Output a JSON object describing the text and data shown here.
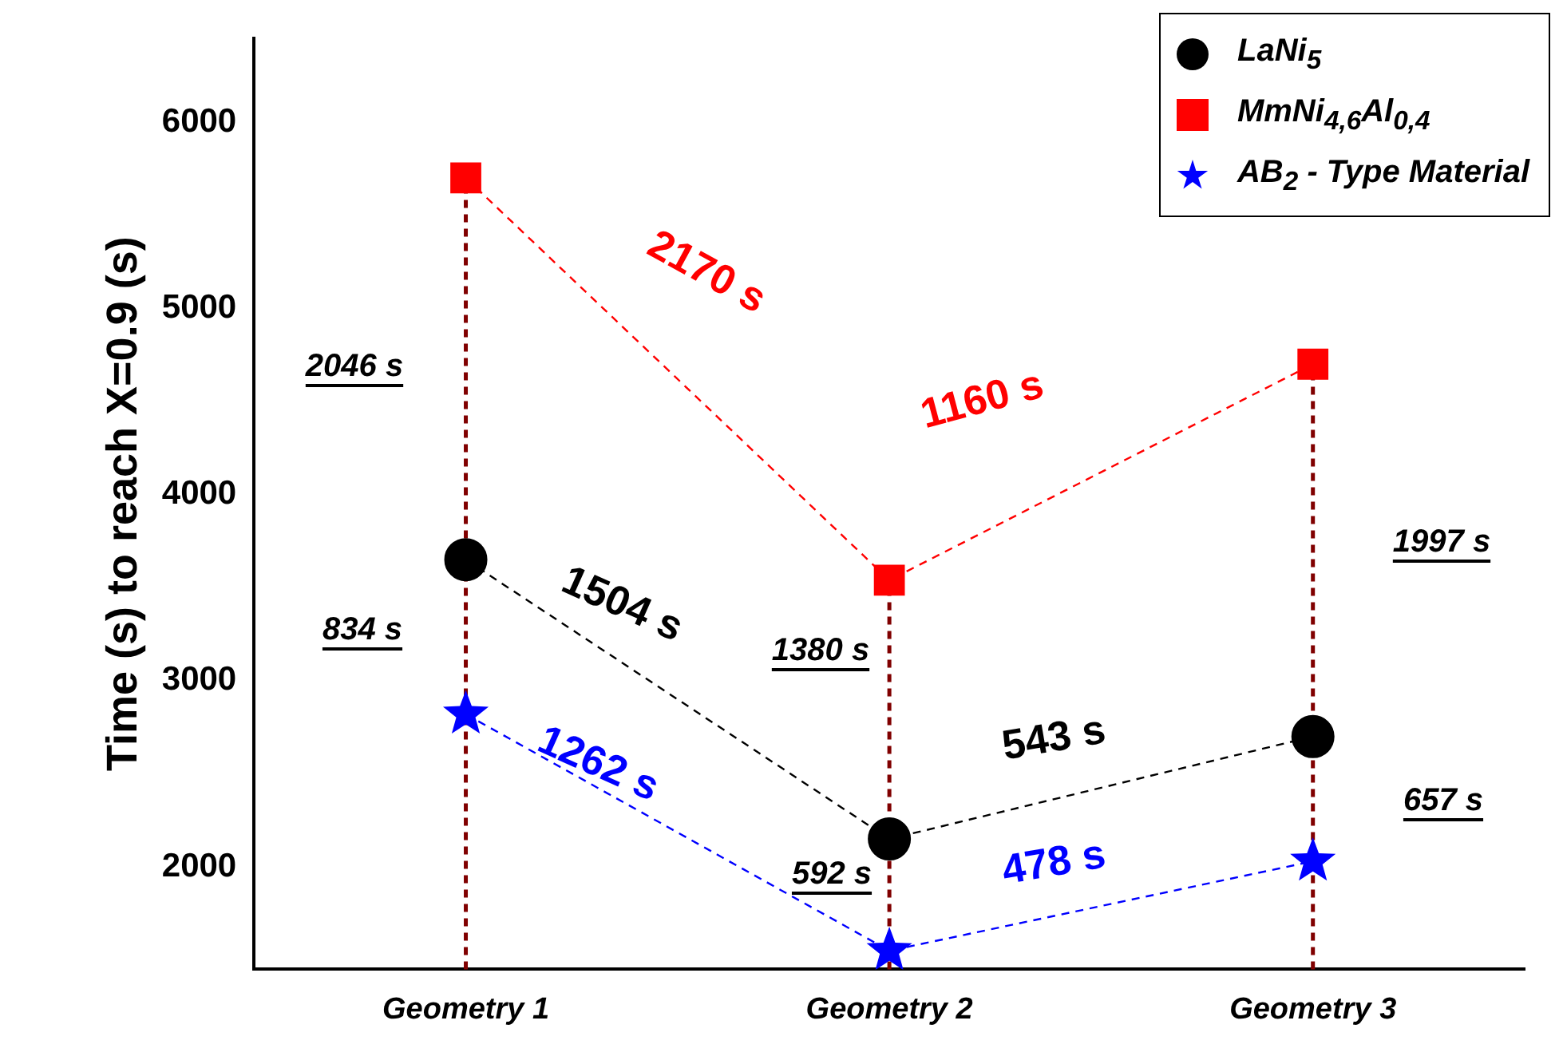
{
  "chart_data": {
    "type": "line",
    "ylabel": "Time (s) to reach X=0.9 (s)",
    "categories": [
      "Geometry 1",
      "Geometry 2",
      "Geometry 3"
    ],
    "ylim": [
      1450,
      6450
    ],
    "yticks": [
      2000,
      3000,
      4000,
      5000,
      6000
    ],
    "legend": "top right",
    "series": [
      {
        "name": "LaNi$_{5}$",
        "color": "#000000",
        "values": [
          3650,
          2150,
          2700
        ],
        "marker": "circle",
        "line_style": "dashed"
      },
      {
        "name": "MmNi$_{4,6}$Al$_{0,4}$",
        "color": "#ff0000",
        "values": [
          5700,
          3540,
          4700
        ],
        "marker": "square",
        "line_style": "dashed"
      },
      {
        "name": "AB$_{2}$ - Type Material",
        "color": "#0000ff",
        "values": [
          2820,
          1550,
          2030
        ],
        "marker": "star",
        "line_style": "dashed"
      }
    ],
    "ref_lines": [
      {
        "axis": "x",
        "value": "Geometry 1",
        "color": "#800000",
        "line_style": "dashed"
      },
      {
        "axis": "x",
        "value": "Geometry 2",
        "color": "#800000",
        "line_style": "dashed"
      },
      {
        "axis": "x",
        "value": "Geometry 3",
        "color": "#800000",
        "line_style": "dashed"
      }
    ],
    "annotations": [
      "2170 s",
      "1160 s",
      "1504 s",
      "543 s",
      "1262 s",
      "478 s",
      "2046 s",
      "834 s",
      "1380 s",
      "592 s",
      "1997 s",
      "657 s"
    ]
  }
}
